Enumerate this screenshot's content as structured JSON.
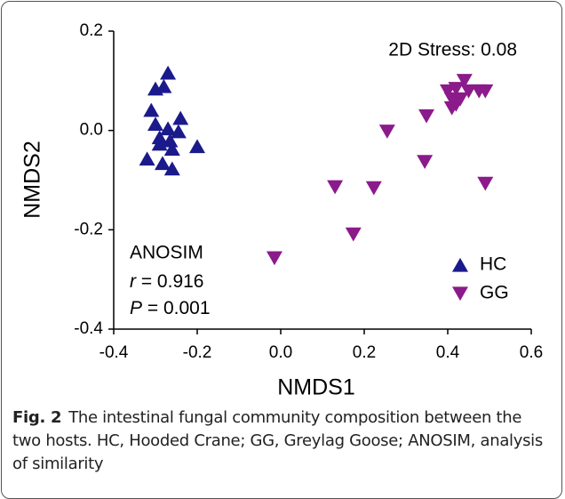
{
  "chart_data": {
    "type": "scatter",
    "xlabel": "NMDS1",
    "ylabel": "NMDS2",
    "xlim": [
      -0.4,
      0.6
    ],
    "xticks": [
      {
        "value": -0.4,
        "label": "-0.4"
      },
      {
        "value": -0.2,
        "label": "-0.2"
      },
      {
        "value": 0,
        "label": "0.0"
      },
      {
        "value": 0.2,
        "label": "0.2"
      },
      {
        "value": 0.4,
        "label": "0.4"
      },
      {
        "value": 0.6,
        "label": "0.6"
      }
    ],
    "ylim": [
      -0.4,
      0.2
    ],
    "yticks": [
      {
        "value": -0.4,
        "label": "-0.4"
      },
      {
        "value": -0.2,
        "label": "-0.2"
      },
      {
        "value": 0,
        "label": "0.0"
      },
      {
        "value": 0.2,
        "label": "0.2"
      }
    ],
    "stress": "2D Stress: 0.08",
    "anosim": {
      "title": "ANOSIM",
      "stats": [
        {
          "symbol": "r",
          "text": " = 0.916"
        },
        {
          "symbol": "P",
          "text": " = 0.001"
        }
      ]
    },
    "legend": "lower right",
    "series": [
      {
        "name": "HC",
        "color": "#1a1a8c",
        "marker": "triangle-up",
        "x": [
          -0.27,
          -0.3,
          -0.28,
          -0.31,
          -0.24,
          -0.3,
          -0.27,
          -0.245,
          -0.29,
          -0.265,
          -0.29,
          -0.26,
          -0.2,
          -0.32,
          -0.283,
          -0.26
        ],
        "values": [
          0.116,
          0.084,
          0.089,
          0.041,
          0.025,
          0.013,
          0.004,
          -0.002,
          -0.014,
          -0.02,
          -0.027,
          -0.037,
          -0.032,
          -0.057,
          -0.066,
          -0.077
        ]
      },
      {
        "name": "GG",
        "color": "#8b1a8b",
        "marker": "triangle-down",
        "x": [
          -0.015,
          0.13,
          0.223,
          0.174,
          0.255,
          0.345,
          0.349,
          0.49,
          0.44,
          0.4,
          0.42,
          0.45,
          0.475,
          0.49,
          0.41,
          0.43,
          0.41,
          0.42
        ],
        "values": [
          -0.257,
          -0.114,
          -0.116,
          -0.209,
          -0.002,
          -0.063,
          0.029,
          -0.107,
          0.1,
          0.079,
          0.084,
          0.079,
          0.079,
          0.079,
          0.063,
          0.063,
          0.045,
          0.052
        ]
      }
    ]
  },
  "caption": {
    "label": "Fig. 2",
    "text": "The intestinal fungal community composition between the two hosts. HC, Hooded Crane; GG, Greylag Goose; ANOSIM, analysis of similarity"
  }
}
